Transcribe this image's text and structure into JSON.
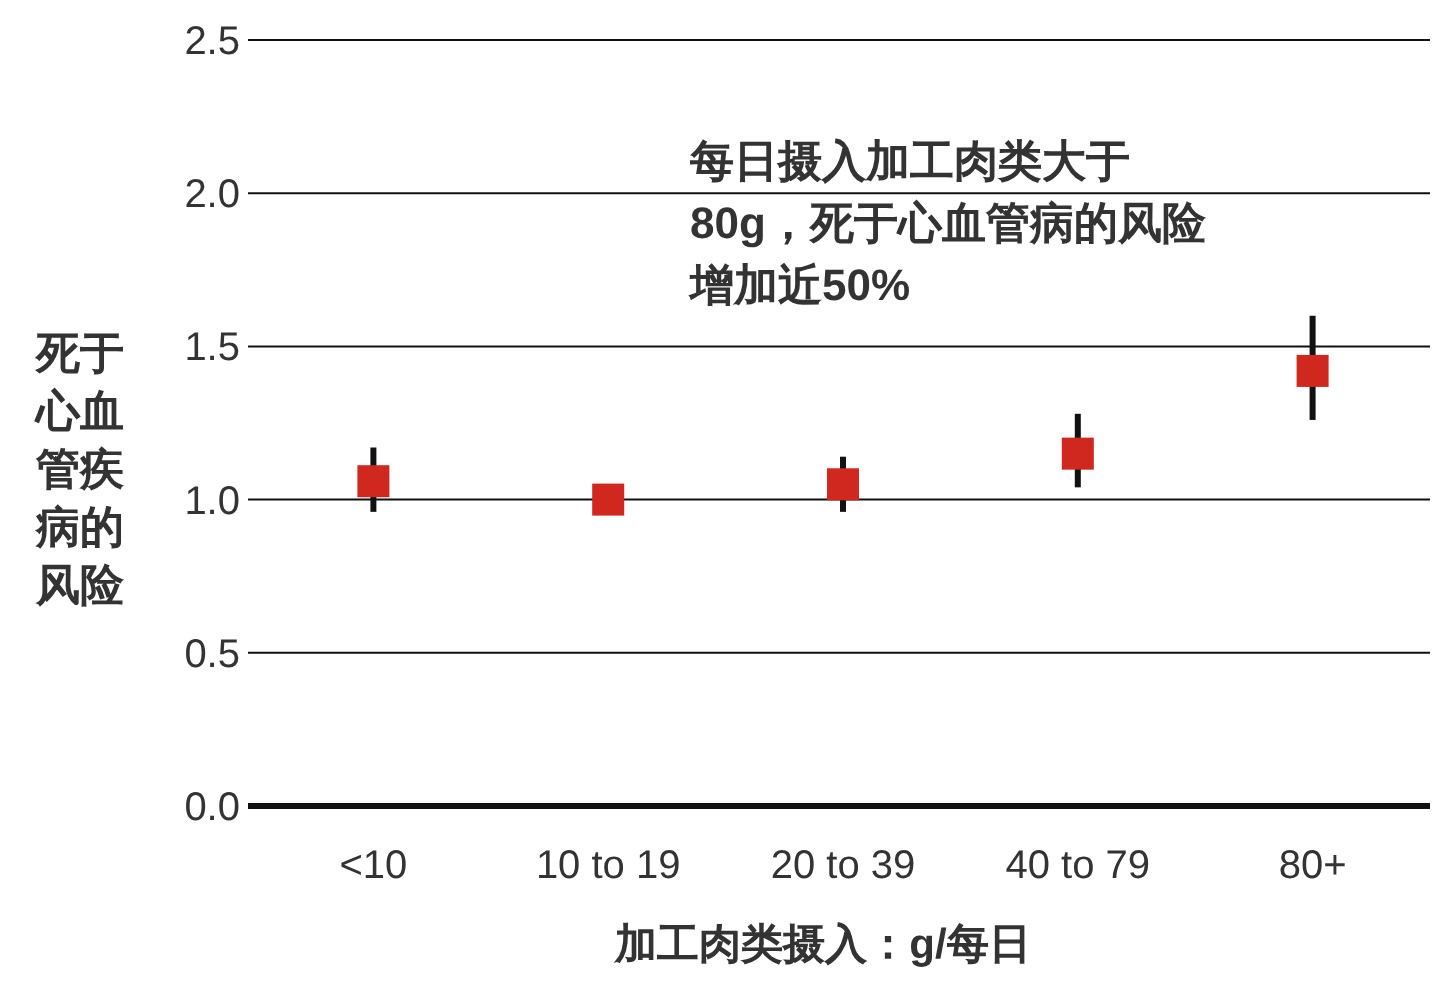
{
  "chart_data": {
    "type": "scatter",
    "categories": [
      "<10",
      "10 to 19",
      "20 to 39",
      "40 to 79",
      "80+"
    ],
    "values": [
      1.06,
      1.0,
      1.05,
      1.15,
      1.42
    ],
    "errors": [
      [
        0.96,
        1.17
      ],
      null,
      [
        0.96,
        1.14
      ],
      [
        1.04,
        1.28
      ],
      [
        1.26,
        1.6
      ]
    ],
    "color": "#d0271f",
    "marker": "square",
    "ylim": [
      0,
      2.5
    ],
    "yticks": [
      {
        "value": 0,
        "label": "0.0"
      },
      {
        "value": 0.5,
        "label": "0.5"
      },
      {
        "value": 1,
        "label": "1.0"
      },
      {
        "value": 1.5,
        "label": "1.5"
      },
      {
        "value": 2,
        "label": "2.0"
      },
      {
        "value": 2.5,
        "label": "2.5"
      }
    ],
    "grid": "y",
    "xlabel": "加工肉类摄入：g/每日",
    "ylabel": "死于心血管疾病的风险",
    "annotations": [
      "每日摄入加工肉类大于",
      "80g，死于心血管病的风险",
      "增加近50%"
    ]
  }
}
